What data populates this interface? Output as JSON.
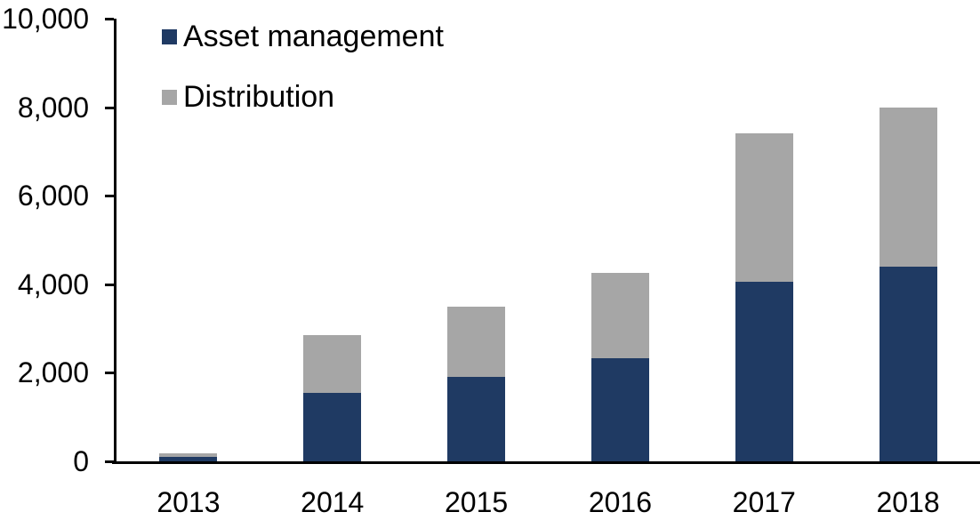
{
  "chart_data": {
    "type": "bar",
    "stacked": true,
    "title": "",
    "categories": [
      "2013",
      "2014",
      "2015",
      "2016",
      "2017",
      "2018"
    ],
    "series": [
      {
        "name": "Asset management",
        "color": "#1f3a63",
        "values": [
          100,
          1550,
          1900,
          2320,
          4050,
          4400
        ]
      },
      {
        "name": "Distribution",
        "color": "#a6a6a6",
        "values": [
          90,
          1300,
          1600,
          1930,
          3350,
          3600
        ]
      }
    ],
    "stacked_totals": [
      190,
      2850,
      3500,
      4250,
      7400,
      8000
    ],
    "xlabel": "",
    "ylabel": "",
    "ylim": [
      0,
      10000
    ],
    "yticks": [
      {
        "value": 0,
        "label": "0"
      },
      {
        "value": 2000,
        "label": "2,000"
      },
      {
        "value": 4000,
        "label": "4,000"
      },
      {
        "value": 6000,
        "label": "6,000"
      },
      {
        "value": 8000,
        "label": "8,000"
      },
      {
        "value": 10000,
        "label": "10,000"
      }
    ],
    "grid": false,
    "legend_position": "top-left-inside",
    "axis_color": "#000000",
    "background_color": "#ffffff"
  },
  "legend": {
    "items": [
      {
        "label": "Asset management",
        "color": "#1f3a63"
      },
      {
        "label": "Distribution",
        "color": "#a6a6a6"
      }
    ]
  }
}
